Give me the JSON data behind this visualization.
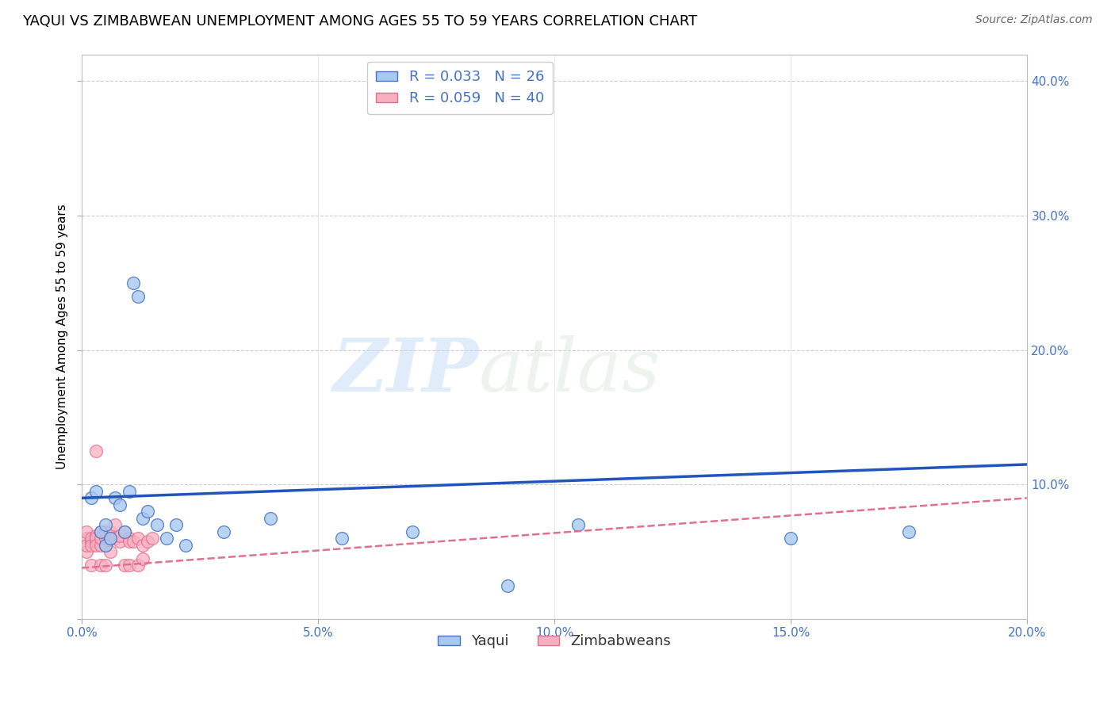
{
  "title": "YAQUI VS ZIMBABWEAN UNEMPLOYMENT AMONG AGES 55 TO 59 YEARS CORRELATION CHART",
  "source": "Source: ZipAtlas.com",
  "ylabel": "Unemployment Among Ages 55 to 59 years",
  "xlim": [
    0.0,
    0.2
  ],
  "ylim": [
    0.0,
    0.42
  ],
  "xticks": [
    0.0,
    0.05,
    0.1,
    0.15,
    0.2
  ],
  "yticks_right": [
    0.1,
    0.2,
    0.3,
    0.4
  ],
  "yaqui_color": "#a8c8f0",
  "zimbabwean_color": "#f8b0c0",
  "yaqui_edge_color": "#4472c4",
  "zimbabwean_edge_color": "#e07090",
  "regression_yaqui_color": "#2255bb",
  "regression_zim_color": "#e07090",
  "watermark_zip": "ZIP",
  "watermark_atlas": "atlas",
  "legend_R_yaqui": "R = 0.033",
  "legend_N_yaqui": "N = 26",
  "legend_R_zim": "R = 0.059",
  "legend_N_zim": "N = 40",
  "yaqui_x": [
    0.002,
    0.003,
    0.004,
    0.005,
    0.005,
    0.006,
    0.007,
    0.008,
    0.009,
    0.01,
    0.011,
    0.012,
    0.013,
    0.014,
    0.016,
    0.018,
    0.02,
    0.022,
    0.03,
    0.04,
    0.055,
    0.07,
    0.09,
    0.105,
    0.15,
    0.175
  ],
  "yaqui_y": [
    0.09,
    0.095,
    0.065,
    0.07,
    0.055,
    0.06,
    0.09,
    0.085,
    0.065,
    0.095,
    0.25,
    0.24,
    0.075,
    0.08,
    0.07,
    0.06,
    0.07,
    0.055,
    0.065,
    0.075,
    0.06,
    0.065,
    0.025,
    0.07,
    0.06,
    0.065
  ],
  "zim_x": [
    0.001,
    0.001,
    0.001,
    0.001,
    0.002,
    0.002,
    0.002,
    0.002,
    0.003,
    0.003,
    0.003,
    0.003,
    0.003,
    0.004,
    0.004,
    0.004,
    0.004,
    0.005,
    0.005,
    0.005,
    0.005,
    0.006,
    0.006,
    0.006,
    0.007,
    0.007,
    0.008,
    0.008,
    0.009,
    0.009,
    0.01,
    0.01,
    0.01,
    0.011,
    0.012,
    0.012,
    0.013,
    0.013,
    0.014,
    0.015
  ],
  "zim_y": [
    0.06,
    0.065,
    0.05,
    0.055,
    0.058,
    0.06,
    0.055,
    0.04,
    0.058,
    0.062,
    0.06,
    0.125,
    0.055,
    0.04,
    0.055,
    0.065,
    0.06,
    0.055,
    0.06,
    0.065,
    0.04,
    0.06,
    0.05,
    0.065,
    0.07,
    0.06,
    0.058,
    0.062,
    0.065,
    0.04,
    0.06,
    0.04,
    0.058,
    0.058,
    0.06,
    0.04,
    0.055,
    0.045,
    0.058,
    0.06
  ],
  "marker_size": 130,
  "title_fontsize": 13,
  "axis_label_fontsize": 11,
  "tick_fontsize": 11,
  "legend_fontsize": 13,
  "reg_line_ystart": 0.09,
  "reg_line_yend": 0.115,
  "reg_zim_ystart": 0.038,
  "reg_zim_yend": 0.09
}
